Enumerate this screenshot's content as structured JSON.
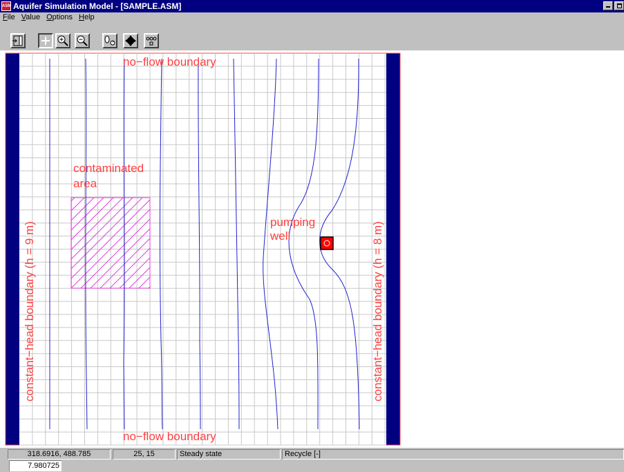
{
  "window": {
    "icon_label": "ASM",
    "title": "Aquifer Simulation Model - [SAMPLE.ASM]"
  },
  "menu": {
    "items": [
      {
        "first": "F",
        "rest": "ile"
      },
      {
        "first": "V",
        "rest": "alue"
      },
      {
        "first": "O",
        "rest": "ptions"
      },
      {
        "first": "H",
        "rest": "elp"
      }
    ]
  },
  "toolbar": {
    "buttons": [
      {
        "icon": "exit-door-icon"
      },
      {
        "icon": "crosshair-icon",
        "pressed": true
      },
      {
        "icon": "zoom-in-icon"
      },
      {
        "icon": "zoom-out-icon"
      },
      {
        "icon": "particle-tracking-icon"
      },
      {
        "icon": "pan-move-icon"
      },
      {
        "icon": "grid-dots-icon"
      }
    ]
  },
  "map": {
    "colors": {
      "background": "#ffffff",
      "grid": "#c8c8c8",
      "boundary": "#000080",
      "label": "#ff4040",
      "contour": "#2020d0",
      "contaminated": "#e040e0",
      "well_fill": "#ff0000"
    },
    "labels": {
      "top_boundary": "no−flow boundary",
      "bottom_boundary": "no−flow boundary",
      "left_boundary": "constant−head boundary (h = 9 m)",
      "right_boundary": "constant−head boundary (h = 8 m)",
      "contaminated_line1": "contaminated",
      "contaminated_line2": "area",
      "well_line1": "pumping",
      "well_line2": "well"
    }
  },
  "status": {
    "coordinates": "318.6916,  488.785",
    "cell": "25, 15",
    "mode": "Steady state",
    "recycle": "Recycle [-]",
    "value": "7.980725"
  }
}
